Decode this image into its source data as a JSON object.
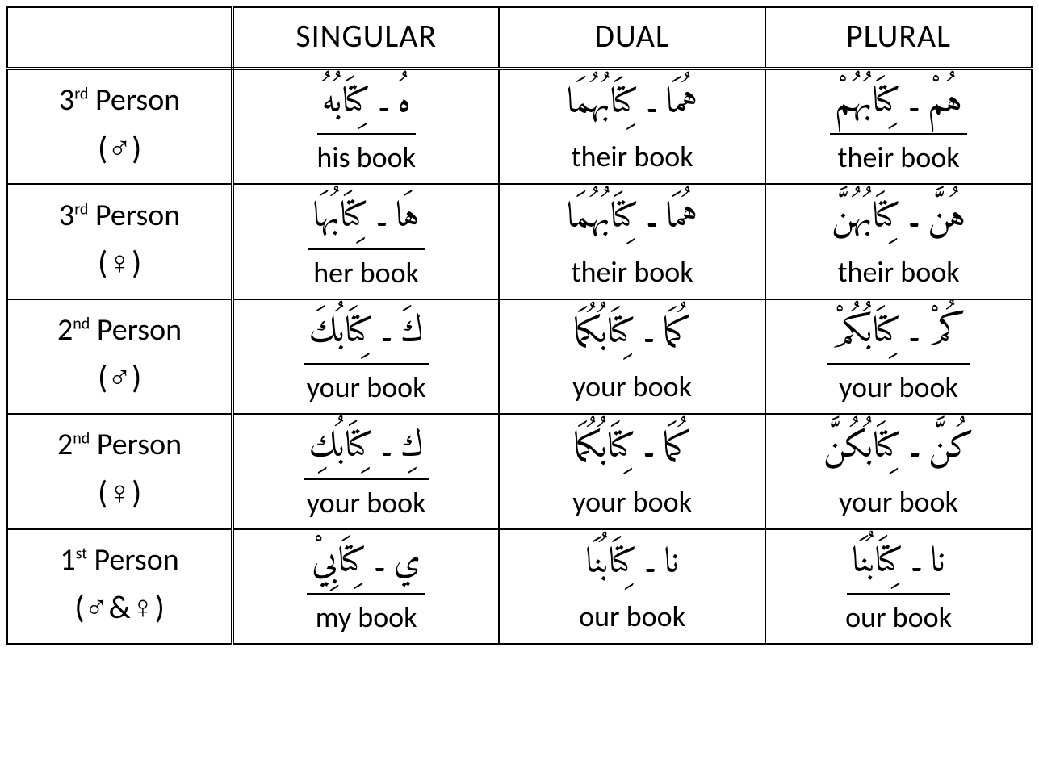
{
  "table": {
    "columns": [
      "SINGULAR",
      "DUAL",
      "PLURAL"
    ],
    "row_headers": [
      {
        "person_num": "3",
        "ord_suffix": "rd",
        "person_word": "Person",
        "gender": "(♂)"
      },
      {
        "person_num": "3",
        "ord_suffix": "rd",
        "person_word": "Person",
        "gender": "(♀)"
      },
      {
        "person_num": "2",
        "ord_suffix": "nd",
        "person_word": "Person",
        "gender": "(♂)"
      },
      {
        "person_num": "2",
        "ord_suffix": "nd",
        "person_word": "Person",
        "gender": "(♀)"
      },
      {
        "person_num": "1",
        "ord_suffix": "st",
        "person_word": "Person",
        "gender": "(♂&♀)"
      }
    ],
    "cells": [
      [
        {
          "arabic": "هُ ـ كِتَابُهُ",
          "english": "his book",
          "underline": true
        },
        {
          "arabic": "هُمَا ـ كِتَابُهُمَا",
          "english": "their book",
          "underline": false
        },
        {
          "arabic": "هُمْ ـ كِتَابُهُمْ",
          "english": "their book",
          "underline": true
        }
      ],
      [
        {
          "arabic": "هَا ـ كِتَابُهَا",
          "english": "her book",
          "underline": true
        },
        {
          "arabic": "هُمَا ـ كِتَابُهُمَا",
          "english": "their  book",
          "underline": false
        },
        {
          "arabic": "هُنَّ ـ كِتَابُهُنَّ",
          "english": "their book",
          "underline": false
        }
      ],
      [
        {
          "arabic": "كَ ـ كِتَابُكَ",
          "english": "your book",
          "underline": true
        },
        {
          "arabic": "كُمَا ـ كِتَابُكُمَا",
          "english": "your book",
          "underline": false
        },
        {
          "arabic": "كُمْ ـ كِتَابُكُمْ",
          "english": "your book",
          "underline": true
        }
      ],
      [
        {
          "arabic": "كِ ـ كِتَابُكِ",
          "english": "your book",
          "underline": true
        },
        {
          "arabic": "كُمَا ـ كِتَابُكُمَا",
          "english": "your book",
          "underline": false
        },
        {
          "arabic": "كُنَّ ـ كِتَابُكُنَّ",
          "english": "your book",
          "underline": false
        }
      ],
      [
        {
          "arabic": "ي ـ كِتَابِيْ",
          "english": "my book",
          "underline": true
        },
        {
          "arabic": "نا ـ كِتَابُنَا",
          "english": "our book",
          "underline": false
        },
        {
          "arabic": "نا ـ كِتَابُنَا",
          "english": "our book",
          "underline": true
        }
      ]
    ],
    "style": {
      "border_color": "#000000",
      "background_color": "#ffffff",
      "header_fontsize": 40,
      "arabic_fontsize": 44,
      "english_fontsize": 36,
      "rowheader_fontsize": 38,
      "col_widths_pct": [
        22,
        26,
        26,
        26
      ]
    }
  }
}
